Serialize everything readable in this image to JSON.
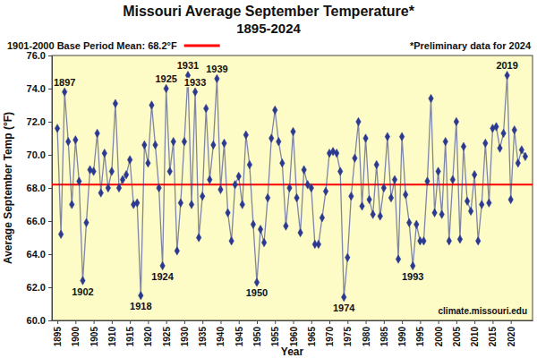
{
  "chart_data": {
    "type": "line",
    "title": "Missouri Average September Temperature*",
    "subtitle": "1895-2024",
    "x_label": "Year",
    "y_label": "Average September Temp (°F)",
    "x": [
      1895,
      1896,
      1897,
      1898,
      1899,
      1900,
      1901,
      1902,
      1903,
      1904,
      1905,
      1906,
      1907,
      1908,
      1909,
      1910,
      1911,
      1912,
      1913,
      1914,
      1915,
      1916,
      1917,
      1918,
      1919,
      1920,
      1921,
      1922,
      1923,
      1924,
      1925,
      1926,
      1927,
      1928,
      1929,
      1930,
      1931,
      1932,
      1933,
      1934,
      1935,
      1936,
      1937,
      1938,
      1939,
      1940,
      1941,
      1942,
      1943,
      1944,
      1945,
      1946,
      1947,
      1948,
      1949,
      1950,
      1951,
      1952,
      1953,
      1954,
      1955,
      1956,
      1957,
      1958,
      1959,
      1960,
      1961,
      1962,
      1963,
      1964,
      1965,
      1966,
      1967,
      1968,
      1969,
      1970,
      1971,
      1972,
      1973,
      1974,
      1975,
      1976,
      1977,
      1978,
      1979,
      1980,
      1981,
      1982,
      1983,
      1984,
      1985,
      1986,
      1987,
      1988,
      1989,
      1990,
      1991,
      1992,
      1993,
      1994,
      1995,
      1996,
      1997,
      1998,
      1999,
      2000,
      2001,
      2002,
      2003,
      2004,
      2005,
      2006,
      2007,
      2008,
      2009,
      2010,
      2011,
      2012,
      2013,
      2014,
      2015,
      2016,
      2017,
      2018,
      2019,
      2020,
      2021,
      2022,
      2023,
      2024
    ],
    "values": [
      71.6,
      65.2,
      73.8,
      70.8,
      67.0,
      70.9,
      68.4,
      62.4,
      65.9,
      69.1,
      69.0,
      71.3,
      67.7,
      70.1,
      68.0,
      69.0,
      73.1,
      68.0,
      68.5,
      68.8,
      69.7,
      67.0,
      67.1,
      61.5,
      70.6,
      69.5,
      73.0,
      70.6,
      68.0,
      63.3,
      74.0,
      69.0,
      70.8,
      64.2,
      67.1,
      70.8,
      74.8,
      67.0,
      73.8,
      65.0,
      67.5,
      72.8,
      68.5,
      70.6,
      74.6,
      67.9,
      70.7,
      66.5,
      64.8,
      68.2,
      68.7,
      67.0,
      71.2,
      69.4,
      65.8,
      62.3,
      65.5,
      64.7,
      67.4,
      71.0,
      72.7,
      70.8,
      69.5,
      65.7,
      68.0,
      71.4,
      67.4,
      65.3,
      69.1,
      68.2,
      68.0,
      64.6,
      64.6,
      66.2,
      67.8,
      70.1,
      70.2,
      70.1,
      69.0,
      61.4,
      63.8,
      67.5,
      69.8,
      72.0,
      66.9,
      71.0,
      67.3,
      66.4,
      69.4,
      66.3,
      68.0,
      71.1,
      67.4,
      68.5,
      63.7,
      71.1,
      67.6,
      65.9,
      63.3,
      65.8,
      64.8,
      64.8,
      68.4,
      73.4,
      66.5,
      69.0,
      66.4,
      70.8,
      64.8,
      68.5,
      72.0,
      64.9,
      70.5,
      67.2,
      66.6,
      68.8,
      64.8,
      67.0,
      70.7,
      67.1,
      71.6,
      71.7,
      70.4,
      71.3,
      74.8,
      67.3,
      71.5,
      69.5,
      70.3,
      69.9
    ],
    "color": "#2b3990",
    "marker": "diamond",
    "xlim": [
      1893.5,
      2026
    ],
    "xticks": [
      1895,
      1900,
      1905,
      1910,
      1915,
      1920,
      1925,
      1930,
      1935,
      1940,
      1945,
      1950,
      1955,
      1960,
      1965,
      1970,
      1975,
      1980,
      1985,
      1990,
      1995,
      2000,
      2005,
      2010,
      2015,
      2020
    ],
    "ylim": [
      60,
      76
    ],
    "yticks": [
      {
        "value": 60,
        "label": "60.0"
      },
      {
        "value": 62,
        "label": "62.0"
      },
      {
        "value": 64,
        "label": "64.0"
      },
      {
        "value": 66,
        "label": "66.0"
      },
      {
        "value": 68,
        "label": "68.0"
      },
      {
        "value": 70,
        "label": "70.0"
      },
      {
        "value": 72,
        "label": "72.0"
      },
      {
        "value": 74,
        "label": "74.0"
      },
      {
        "value": 76,
        "label": "76.0"
      }
    ],
    "grid": false,
    "reference_line": {
      "value": 68.2,
      "label": "1901-2000 Base Period Mean: 68.2°F",
      "color": "#ff0000"
    },
    "footnote": "*Preliminary data for 2024",
    "source": "climate.missouri.edu",
    "annotations": [
      {
        "text": "1897",
        "x": 1897,
        "y": 73.8
      },
      {
        "text": "1902",
        "x": 1902,
        "y": 62.4
      },
      {
        "text": "1918",
        "x": 1918,
        "y": 61.5
      },
      {
        "text": "1924",
        "x": 1924,
        "y": 63.3
      },
      {
        "text": "1925",
        "x": 1925,
        "y": 74.0
      },
      {
        "text": "1931",
        "x": 1931,
        "y": 74.8
      },
      {
        "text": "1933",
        "x": 1933,
        "y": 73.8
      },
      {
        "text": "1939",
        "x": 1939,
        "y": 74.6
      },
      {
        "text": "1950",
        "x": 1950,
        "y": 62.3
      },
      {
        "text": "1974",
        "x": 1974,
        "y": 61.4
      },
      {
        "text": "1993",
        "x": 1993,
        "y": 63.3
      },
      {
        "text": "2019",
        "x": 2019,
        "y": 74.8
      }
    ]
  }
}
